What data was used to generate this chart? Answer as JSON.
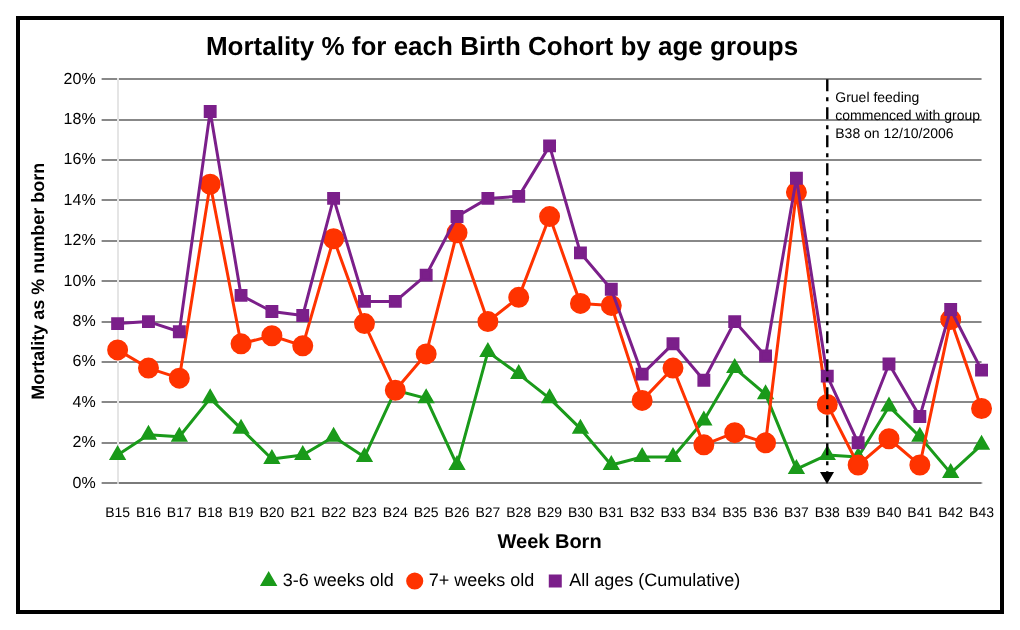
{
  "chart_data": {
    "type": "line",
    "title": "Mortality % for each Birth Cohort by age groups",
    "xlabel": "Week Born",
    "ylabel": "Mortality as % number born",
    "categories": [
      "B15",
      "B16",
      "B17",
      "B18",
      "B19",
      "B20",
      "B21",
      "B22",
      "B23",
      "B24",
      "B25",
      "B26",
      "B27",
      "B28",
      "B29",
      "B30",
      "B31",
      "B32",
      "B33",
      "B34",
      "B35",
      "B36",
      "B37",
      "B38",
      "B39",
      "B40",
      "B41",
      "B42",
      "B43"
    ],
    "series": [
      {
        "name": "3-6 weeks old",
        "color": "#1a9a1a",
        "marker": "triangle",
        "values": [
          1.4,
          2.4,
          2.3,
          4.2,
          2.7,
          1.2,
          1.4,
          2.3,
          1.3,
          4.6,
          4.2,
          0.9,
          6.5,
          5.4,
          4.2,
          2.7,
          0.9,
          1.3,
          1.3,
          3.1,
          5.7,
          4.4,
          0.7,
          1.4,
          1.3,
          3.8,
          2.3,
          0.5,
          1.9
        ]
      },
      {
        "name": "7+ weeks old",
        "color": "#ff3300",
        "marker": "circle",
        "values": [
          6.6,
          5.7,
          5.2,
          14.8,
          6.9,
          7.3,
          6.8,
          12.1,
          7.9,
          4.6,
          6.4,
          12.4,
          8.0,
          9.2,
          13.2,
          8.9,
          8.8,
          4.1,
          5.7,
          1.9,
          2.5,
          2.0,
          14.4,
          3.9,
          0.9,
          2.2,
          0.9,
          8.1,
          3.7
        ]
      },
      {
        "name": "All ages (Cumulative)",
        "color": "#7b1f8a",
        "marker": "square",
        "values": [
          7.9,
          8.0,
          7.5,
          18.4,
          9.3,
          8.5,
          8.3,
          14.1,
          9.0,
          9.0,
          10.3,
          13.2,
          14.1,
          14.2,
          16.7,
          11.4,
          9.6,
          5.4,
          6.9,
          5.1,
          8.0,
          6.3,
          15.1,
          5.3,
          2.0,
          5.9,
          3.3,
          8.6,
          5.6
        ]
      }
    ],
    "ylim": [
      0,
      20
    ],
    "yticks": [
      {
        "value": 0,
        "label": "0%"
      },
      {
        "value": 2,
        "label": "2%"
      },
      {
        "value": 4,
        "label": "4%"
      },
      {
        "value": 6,
        "label": "6%"
      },
      {
        "value": 8,
        "label": "8%"
      },
      {
        "value": 10,
        "label": "10%"
      },
      {
        "value": 12,
        "label": "12%"
      },
      {
        "value": 14,
        "label": "14%"
      },
      {
        "value": 16,
        "label": "16%"
      },
      {
        "value": 18,
        "label": "18%"
      },
      {
        "value": 20,
        "label": "20%"
      }
    ],
    "grid": "y",
    "legend": "bottom",
    "line_style": "solid",
    "ref_lines": [
      {
        "axis": "x",
        "value": "B38",
        "label": "Gruel feeding commenced with group B38 on 12/10/2006",
        "line_style": "dashed",
        "color": "#000000"
      }
    ]
  }
}
